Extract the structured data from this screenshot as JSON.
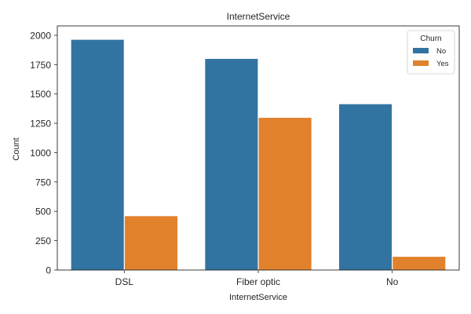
{
  "chart_data": {
    "type": "bar",
    "title": "InternetService",
    "xlabel": "InternetService",
    "ylabel": "Count",
    "categories": [
      "DSL",
      "Fiber optic",
      "No"
    ],
    "series": [
      {
        "name": "No",
        "values": [
          1962,
          1799,
          1413
        ],
        "color": "#3274a1"
      },
      {
        "name": "Yes",
        "values": [
          459,
          1297,
          113
        ],
        "color": "#e1812c"
      }
    ],
    "ylim": [
      0,
      2080
    ],
    "yticks": [
      0,
      250,
      500,
      750,
      1000,
      1250,
      1500,
      1750,
      2000
    ],
    "grid": false,
    "legend": {
      "title": "Churn",
      "placement": "top-right"
    }
  }
}
